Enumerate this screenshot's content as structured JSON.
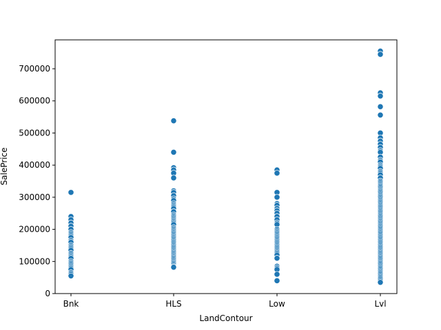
{
  "chart_data": {
    "type": "scatter",
    "xlabel": "LandContour",
    "ylabel": "SalePrice",
    "categories": [
      "Bnk",
      "HLS",
      "Low",
      "Lvl"
    ],
    "ylim": [
      0,
      790000
    ],
    "yticks": [
      0,
      100000,
      200000,
      300000,
      400000,
      500000,
      600000,
      700000
    ],
    "ytick_labels": [
      "0",
      "100000",
      "200000",
      "300000",
      "400000",
      "500000",
      "600000",
      "700000"
    ],
    "grid": false,
    "legend": "none",
    "marker_color": "#1f77b4",
    "points": {
      "Bnk": [
        315000,
        240000,
        230000,
        220000,
        210000,
        200000,
        190000,
        185000,
        180000,
        175000,
        165000,
        160000,
        150000,
        145000,
        140000,
        135000,
        125000,
        120000,
        115000,
        110000,
        100000,
        95000,
        90000,
        85000,
        80000,
        75000,
        65000,
        60000,
        55000
      ],
      "HLS": [
        538000,
        440000,
        392000,
        385000,
        375000,
        360000,
        320000,
        315000,
        305000,
        295000,
        290000,
        280000,
        275000,
        270000,
        265000,
        255000,
        245000,
        240000,
        235000,
        230000,
        225000,
        220000,
        215000,
        205000,
        200000,
        195000,
        190000,
        185000,
        180000,
        175000,
        170000,
        165000,
        160000,
        155000,
        150000,
        145000,
        140000,
        135000,
        130000,
        125000,
        120000,
        115000,
        110000,
        105000,
        100000,
        95000,
        90000,
        85000,
        82000
      ],
      "Low": [
        385000,
        375000,
        315000,
        300000,
        280000,
        275000,
        265000,
        258000,
        250000,
        240000,
        230000,
        220000,
        215000,
        200000,
        195000,
        190000,
        185000,
        180000,
        175000,
        170000,
        165000,
        160000,
        155000,
        150000,
        145000,
        140000,
        135000,
        130000,
        125000,
        120000,
        110000,
        85000,
        80000,
        75000,
        60000,
        40000
      ],
      "Lvl": [
        755000,
        745000,
        625000,
        615000,
        582000,
        556000,
        500000,
        485000,
        475000,
        465000,
        455000,
        445000,
        440000,
        425000,
        415000,
        410000,
        400000,
        395000,
        390000,
        380000,
        375000,
        370000,
        360000,
        350000,
        345000,
        340000,
        335000,
        330000,
        325000,
        320000,
        315000,
        310000,
        305000,
        300000,
        295000,
        290000,
        285000,
        280000,
        275000,
        270000,
        265000,
        260000,
        255000,
        250000,
        245000,
        240000,
        235000,
        230000,
        225000,
        220000,
        215000,
        210000,
        205000,
        200000,
        195000,
        190000,
        185000,
        180000,
        175000,
        170000,
        165000,
        160000,
        155000,
        150000,
        145000,
        140000,
        135000,
        130000,
        125000,
        120000,
        115000,
        110000,
        105000,
        100000,
        95000,
        90000,
        85000,
        80000,
        75000,
        70000,
        65000,
        60000,
        55000,
        50000,
        45000,
        40000,
        35000
      ]
    }
  }
}
